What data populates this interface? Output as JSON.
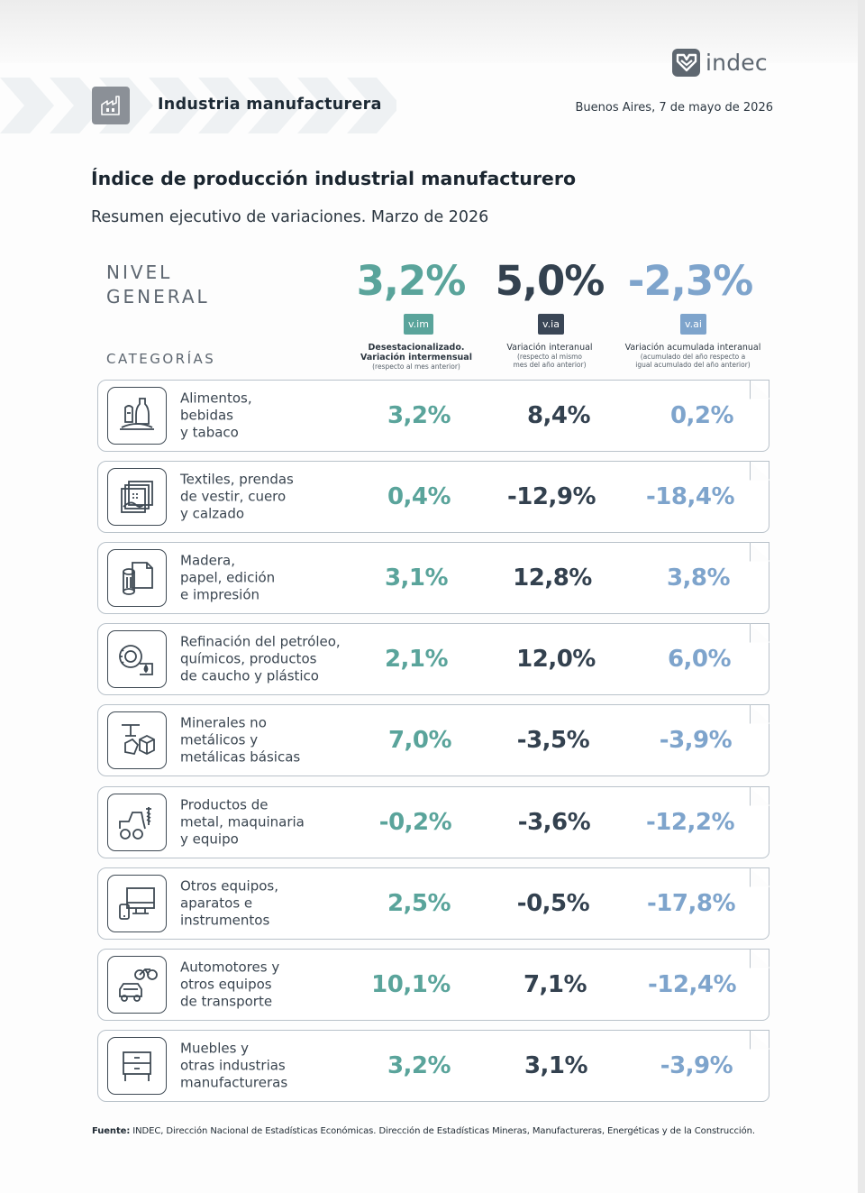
{
  "brand": {
    "name": "indec"
  },
  "header": {
    "section": "Industria manufacturera",
    "date": "Buenos Aires, 7 de mayo de 2026"
  },
  "title": "Índice de producción industrial manufacturero",
  "subtitle": "Resumen ejecutivo de variaciones. Marzo de 2026",
  "nivel_general": {
    "label_line1": "NIVEL",
    "label_line2": "GENERAL",
    "vim": "3,2%",
    "via": "5,0%",
    "vai": "-2,3%"
  },
  "columns": [
    {
      "badge": "v.im",
      "title_line1": "Desestacionalizado.",
      "title_line2": "Variación intermensual",
      "note_line1": "(respecto al mes anterior)",
      "note_line2": "",
      "color": "#5aa49b"
    },
    {
      "badge": "v.ia",
      "title_line1": "Variación interanual",
      "title_line2": "",
      "note_line1": "(respecto al mismo",
      "note_line2": "mes del año anterior)",
      "color": "#3a4656"
    },
    {
      "badge": "v.ai",
      "title_line1": "Variación acumulada interanual",
      "title_line2": "",
      "note_line1": "(acumulado del año respecto a",
      "note_line2": "igual acumulado del año anterior)",
      "color": "#7ea4cc"
    }
  ],
  "categorias_label": "CATEGORÍAS",
  "categories": [
    {
      "icon": "food-icon",
      "lines": [
        "Alimentos,",
        "bebidas",
        "y tabaco"
      ],
      "vim": "3,2%",
      "via": "8,4%",
      "vai": "0,2%"
    },
    {
      "icon": "textile-icon",
      "lines": [
        "Textiles, prendas",
        "de vestir, cuero",
        "y calzado"
      ],
      "vim": "0,4%",
      "via": "-12,9%",
      "vai": "-18,4%"
    },
    {
      "icon": "paper-icon",
      "lines": [
        "Madera,",
        "papel, edición",
        "e impresión"
      ],
      "vim": "3,1%",
      "via": "12,8%",
      "vai": "3,8%"
    },
    {
      "icon": "refinery-icon",
      "lines": [
        "Refinación del petróleo,",
        "químicos, productos",
        "de caucho y plástico"
      ],
      "vim": "2,1%",
      "via": "12,0%",
      "vai": "6,0%"
    },
    {
      "icon": "minerals-icon",
      "lines": [
        "Minerales no",
        "metálicos y",
        "metálicas básicas"
      ],
      "vim": "7,0%",
      "via": "-3,5%",
      "vai": "-3,9%"
    },
    {
      "icon": "machinery-icon",
      "lines": [
        "Productos de",
        "metal, maquinaria",
        "y equipo"
      ],
      "vim": "-0,2%",
      "via": "-3,6%",
      "vai": "-12,2%"
    },
    {
      "icon": "devices-icon",
      "lines": [
        "Otros equipos,",
        "aparatos e",
        "instrumentos"
      ],
      "vim": "2,5%",
      "via": "-0,5%",
      "vai": "-17,8%"
    },
    {
      "icon": "vehicles-icon",
      "lines": [
        "Automotores y",
        "otros equipos",
        "de transporte"
      ],
      "vim": "10,1%",
      "via": "7,1%",
      "vai": "-12,4%"
    },
    {
      "icon": "furniture-icon",
      "lines": [
        "Muebles y",
        "otras industrias",
        "manufactureras"
      ],
      "vim": "3,2%",
      "via": "3,1%",
      "vai": "-3,9%"
    }
  ],
  "footer": {
    "label": "Fuente:",
    "text": " INDEC, Dirección Nacional de Estadísticas Económicas. Dirección de Estadísticas Mineras, Manufactureras, Energéticas y de la Construcción."
  }
}
